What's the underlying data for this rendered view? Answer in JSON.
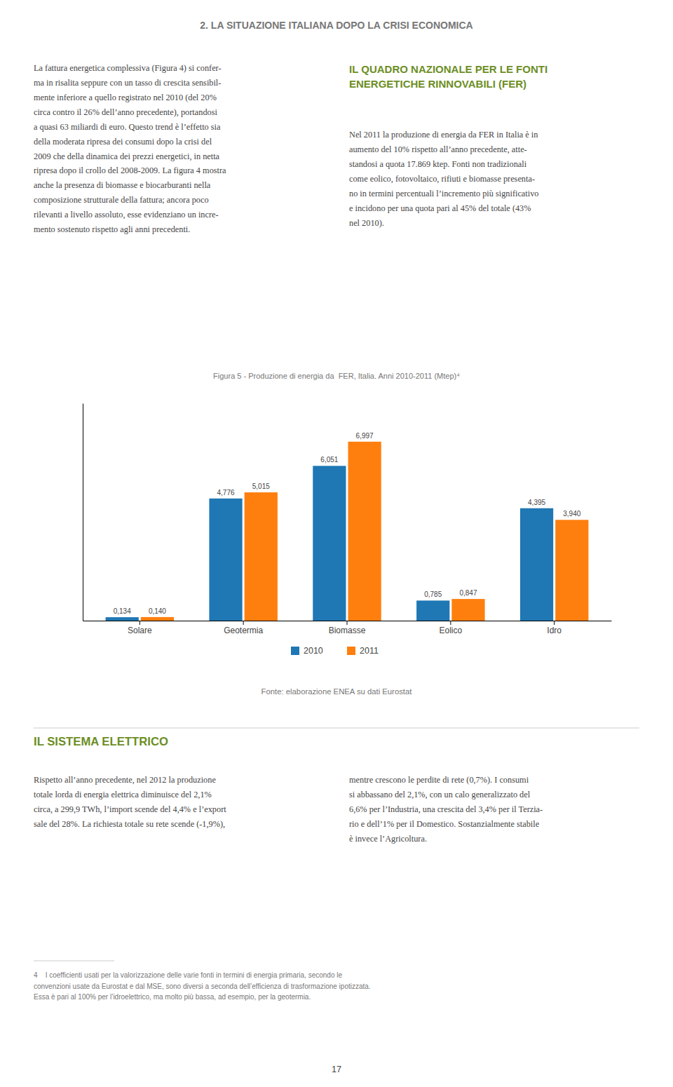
{
  "page_title": "2. LA SITUAZIONE ITALIANA DOPO LA CRISI ECONOMICA",
  "col1_text": "La fattura energetica complessiva (Figura 4) si confer-\nma in risalita seppure con un tasso di crescita sensibil-\nmente inferiore a quello registrato nel 2010 (del 20%\ncirca contro il 26% dell’anno precedente), portandosi\na quasi 63 miliardi di euro. Questo trend è l’effetto sia\ndella moderata ripresa dei consumi dopo la crisi del\n2009 che della dinamica dei prezzi energetici, in netta\nripresa dopo il crollo del 2008-2009. La figura 4 mostra\nanche la presenza di biomasse e biocarburanti nella\ncomposizione strutturale della fattura; ancora poco\nrilevanti a livello assoluto, esse evidenziano un incre-\nmento sostenuto rispetto agli anni precedenti.",
  "col2_heading": "IL QUADRO NAZIONALE PER LE FONTI\nENERGETICHE RINNOVABILI (FER)",
  "col2_text": "Nel 2011 la produzione di energia da FER in Italia è in\naumento del 10% rispetto all’anno precedente, atte-\nstandosi a quota 17.869 ktep. Fonti non tradizionali\ncome eolico, fotovoltaico, rifiuti e biomasse presenta-\nno in termini percentuali l’incremento più significativo\ne incidono per una quota pari al 45% del totale (43%\nnel 2010).",
  "section_heading": "IL SISTEMA ELETTRICO",
  "section_col1": "Rispetto all’anno precedente, nel 2012 la produzione\ntotale lorda di energia elettrica diminuisce del 2,1%\ncirca, a 299,9 TWh, l’import scende del 4,4% e l’export\nsale del 28%. La richiesta totale su rete scende (-1,9%),",
  "section_col2": "mentre crescono le perdite di rete (0,7%). I consumi\nsi abbassano del 2,1%, con un calo generalizzato del\n6,6% per l’Industria, una crescita del 3,4% per il Terzia-\nrio e dell’1% per il Domestico. Sostanzialmente stabile\nè invece l’Agricoltura.",
  "footnote_text": "4    I coefficienti usati per la valorizzazione delle varie fonti in termini di energia primaria, secondo le\nconvenzioni usate da Eurostat e dal MSE, sono diversi a seconda dell’efficienza di trasformazione ipotizzata.\nEssa è pari al 100% per l’idroelettrico, ma molto più bassa, ad esempio, per la geotermia.",
  "page_number": "17",
  "chart_data": {
    "type": "bar",
    "title": "Figura 5 - Produzione di energia da  FER, Italia. Anni 2010-2011 (Mtep)⁴",
    "categories": [
      "Solare",
      "Geotermia",
      "Biomasse",
      "Eolico",
      "Idro"
    ],
    "series": [
      {
        "name": "2010",
        "values": [
          0.134,
          4.776,
          6.051,
          0.785,
          4.395
        ],
        "value_labels": [
          "0,134",
          "4,776",
          "6,051",
          "0,785",
          "4,395"
        ]
      },
      {
        "name": "2011",
        "values": [
          0.14,
          5.015,
          6.997,
          0.847,
          3.94
        ],
        "value_labels": [
          "0,140",
          "5,015",
          "6,997",
          "0,847",
          "3,940"
        ]
      }
    ],
    "ylim": [
      0,
      8.5
    ],
    "yticks": [],
    "tick_labels": "x",
    "grid": false,
    "legend": "bottom",
    "data_labels": true,
    "annotations": [
      "Fonte: elaborazione ENEA su dati Eurostat"
    ]
  }
}
